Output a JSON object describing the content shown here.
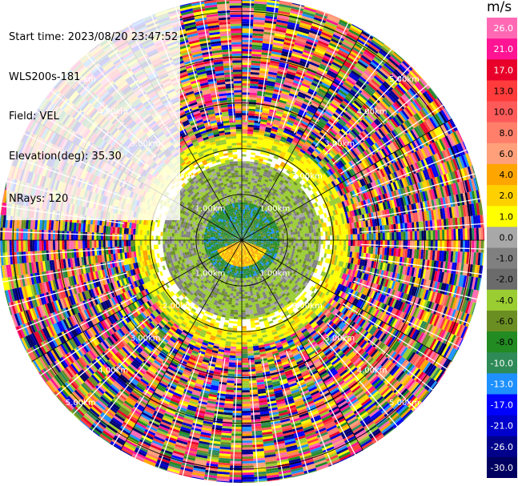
{
  "header": {
    "start_time": "Start time: 2023/08/20 23:47:52",
    "instrument": "WLS200s-181",
    "field": "Field: VEL",
    "elevation": "Elevation(deg): 35.30",
    "nrays": "NRays: 120"
  },
  "colorbar": {
    "unit": "m/s",
    "ticks": [
      "26.0",
      "21.0",
      "17.0",
      "13.0",
      "10.0",
      "8.0",
      "6.0",
      "4.0",
      "2.0",
      "1.0",
      "0.0",
      "-1.0",
      "-2.0",
      "-4.0",
      "-6.0",
      "-8.0",
      "-10.0",
      "-13.0",
      "-17.0",
      "-21.0",
      "-26.0",
      "-30.0"
    ],
    "colors": [
      "#ff69b4",
      "#ff1493",
      "#e8002a",
      "#ff3b3b",
      "#ff5a5a",
      "#ff7f6a",
      "#ffa07a",
      "#ffa500",
      "#ffd000",
      "#ffff00",
      "#a8a8a8",
      "#808080",
      "#6b6b6b",
      "#9acd32",
      "#6b8e23",
      "#228b22",
      "#2e8b57",
      "#1e90ff",
      "#0000ff",
      "#0000cd",
      "#00008b",
      "#000060"
    ]
  },
  "chart_data": {
    "type": "heatmap",
    "subtype": "ppi-polar",
    "field": "VEL",
    "unit": "m/s",
    "nrays": 120,
    "range_rings_km": [
      1.0,
      2.0,
      3.0,
      4.0,
      5.0
    ],
    "range_labels": [
      "1.00km",
      "2.00km",
      "3.00km",
      "4.00km",
      "5.00km"
    ],
    "max_range_km": 5.3,
    "value_range": [
      -30.0,
      26.0
    ]
  }
}
